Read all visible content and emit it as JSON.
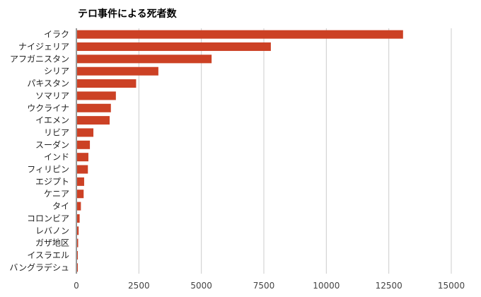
{
  "chart_data": {
    "type": "bar",
    "orientation": "horizontal",
    "title": "テロ事件による死者数",
    "xlabel": "",
    "ylabel": "",
    "categories": [
      "イラク",
      "ナイジェリア",
      "アフガニスタン",
      "シリア",
      "パキスタン",
      "ソマリア",
      "ウクライナ",
      "イエメン",
      "リビア",
      "スーダン",
      "インド",
      "フィリピン",
      "エジプト",
      "ケニア",
      "タイ",
      "コロンビア",
      "レバノン",
      "ガザ地区",
      "イスラエル",
      "バングラデシュ"
    ],
    "values": [
      13070,
      7780,
      5410,
      3280,
      2390,
      1580,
      1380,
      1330,
      680,
      540,
      480,
      460,
      310,
      290,
      180,
      130,
      90,
      70,
      50,
      30
    ],
    "xlim": [
      0,
      15000
    ],
    "xticks": [
      0,
      2500,
      5000,
      7500,
      10000,
      12500,
      15000
    ],
    "xtick_labels": [
      "0",
      "2500",
      "5000",
      "7500",
      "10000",
      "12500",
      "15000"
    ],
    "grid": true,
    "legend": "none",
    "bar_color": "#cc4125"
  }
}
